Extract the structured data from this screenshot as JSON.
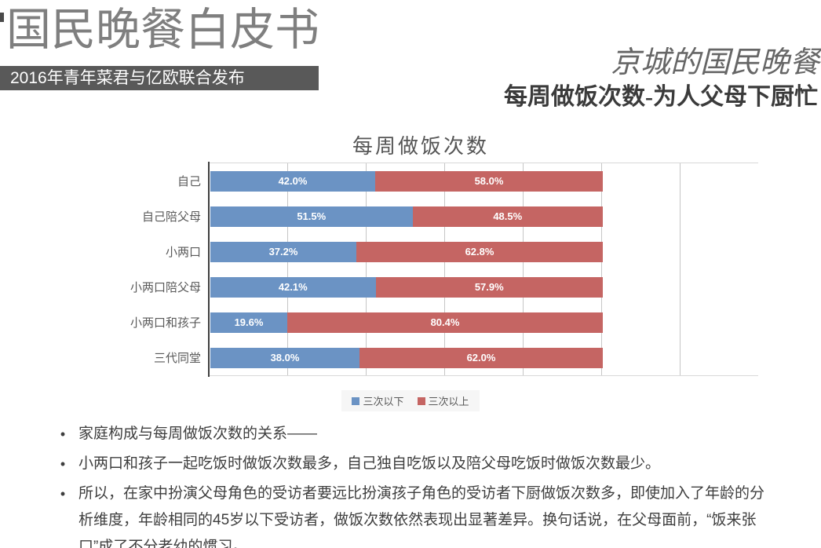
{
  "header": {
    "main_title": "国民晚餐白皮书",
    "banner": "2016年青年菜君与亿欧联合发布",
    "right_title": "京城的国民晚餐",
    "right_subtitle": "每周做饭次数-为人父母下厨忙"
  },
  "chart_data": {
    "type": "bar",
    "orientation": "horizontal",
    "stacked": true,
    "title": "每周做饭次数",
    "categories": [
      "自己",
      "自己陪父母",
      "小两口",
      "小两口陪父母",
      "小两口和孩子",
      "三代同堂"
    ],
    "series": [
      {
        "name": "三次以下",
        "color": "#6b93c4",
        "values": [
          42.0,
          51.5,
          37.2,
          42.1,
          19.6,
          38.0
        ],
        "labels": [
          "42.0%",
          "51.5%",
          "37.2%",
          "42.1%",
          "19.6%",
          "38.0%"
        ]
      },
      {
        "name": "三次以上",
        "color": "#c56563",
        "values": [
          58.0,
          48.5,
          62.8,
          57.9,
          80.4,
          62.0
        ],
        "labels": [
          "58.0%",
          "48.5%",
          "62.8%",
          "57.9%",
          "80.4%",
          "62.0%"
        ]
      }
    ],
    "xlim": [
      0,
      100
    ],
    "grid": "vertical-gridlines",
    "legend_position": "bottom"
  },
  "bullets": [
    "家庭构成与每周做饭次数的关系——",
    "小两口和孩子一起吃饭时做饭次数最多，自己独自吃饭以及陪父母吃饭时做饭次数最少。",
    "所以，在家中扮演父母角色的受访者要远比扮演孩子角色的受访者下厨做饭次数多，即使加入了年龄的分析维度，年龄相同的45岁以下受访者，做饭次数依然表现出显著差异。换句话说，在父母面前，“饭来张口”成了不分老幼的惯习。"
  ],
  "colors": {
    "banner_bg": "#595959",
    "title_gray": "#7f7f7f",
    "series_blue": "#6b93c4",
    "series_red": "#c56563",
    "axis": "#3f3f3f",
    "gridline": "#c6c6c6",
    "text": "#3e3e3e"
  }
}
